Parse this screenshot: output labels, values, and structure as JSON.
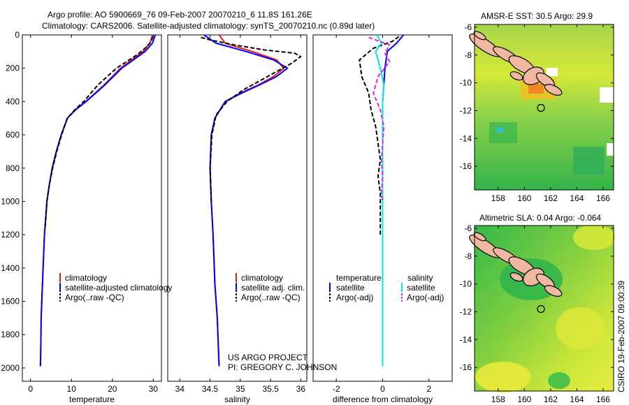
{
  "figure": {
    "title_line1": "Argo profile: AO 5900669_76 09-Feb-2007 20070210_6 11.8S 161.26E",
    "title_line2": "Climatology: CARS2006. Satellite-adjusted climatology: synTS_20070210.nc (0.89d later)",
    "project_line1": "US ARGO PROJECT",
    "project_line2": "PI: GREGORY C. JOHNSON",
    "stamp": "CSIRO 19-Feb-2007 09:00:39",
    "colors": {
      "climatology": "#e41a1c",
      "satellite": "#0000ff",
      "argo": "#000000",
      "salinity_satellite": "#00e5ee",
      "salinity_argo": "#e02ad0",
      "map_frame": "#000000"
    }
  },
  "chart_data": [
    {
      "type": "line",
      "id": "temperature",
      "xlabel": "temperature",
      "xlim": [
        -2,
        32
      ],
      "xticks": [
        0,
        10,
        20,
        30
      ],
      "ylim": [
        0,
        2080
      ],
      "yreversed": true,
      "yticks": [
        0,
        200,
        400,
        600,
        800,
        1000,
        1200,
        1400,
        1600,
        1800,
        2000
      ],
      "legend": [
        "climatology",
        "satellite-adjusted climatology",
        "Argo(..raw -QC)"
      ],
      "series": [
        {
          "name": "climatology",
          "color": "#e41a1c",
          "style": "solid",
          "x": [
            29.8,
            29.2,
            27.5,
            22.0,
            18.0,
            13.5,
            11.0,
            9.0,
            7.5,
            6.3,
            5.3,
            4.6,
            4.0,
            3.4,
            2.9,
            2.6,
            2.5,
            2.4
          ],
          "y": [
            0,
            50,
            100,
            200,
            300,
            400,
            450,
            500,
            600,
            700,
            800,
            900,
            1000,
            1200,
            1500,
            1700,
            1900,
            1990
          ]
        },
        {
          "name": "satellite-adjusted climatology",
          "color": "#0000ff",
          "style": "solid",
          "x": [
            30.5,
            29.8,
            28.0,
            22.3,
            18.2,
            13.6,
            11.0,
            9.0,
            7.5,
            6.3,
            5.3,
            4.6,
            4.0,
            3.4,
            2.9,
            2.6,
            2.5,
            2.4
          ],
          "y": [
            0,
            50,
            100,
            200,
            300,
            400,
            450,
            500,
            600,
            700,
            800,
            900,
            1000,
            1200,
            1500,
            1700,
            1900,
            1990
          ]
        },
        {
          "name": "Argo(..raw -QC)",
          "color": "#000000",
          "style": "dashed",
          "x": [
            29.9,
            29.5,
            28.0,
            26.0,
            21.0,
            16.5,
            13.0,
            10.8,
            9.0,
            7.6,
            6.4,
            5.4,
            4.6,
            4.0,
            3.6
          ],
          "y": [
            10,
            40,
            80,
            120,
            200,
            300,
            400,
            450,
            500,
            600,
            700,
            800,
            900,
            1000,
            1150
          ]
        }
      ]
    },
    {
      "type": "line",
      "id": "salinity",
      "xlabel": "salinity",
      "xlim": [
        33.8,
        36.1
      ],
      "xticks": [
        34,
        34.5,
        35,
        35.5,
        36
      ],
      "ylim": [
        0,
        2080
      ],
      "yreversed": true,
      "legend": [
        "climatology",
        "satellite adj. clim.",
        "Argo(..raw -QC)"
      ],
      "series": [
        {
          "name": "climatology",
          "color": "#e41a1c",
          "style": "solid",
          "x": [
            34.65,
            34.75,
            35.2,
            35.6,
            35.72,
            35.55,
            35.3,
            35.0,
            34.75,
            34.58,
            34.52,
            34.5,
            34.52,
            34.55,
            34.58,
            34.62,
            34.64,
            34.65
          ],
          "y": [
            0,
            50,
            100,
            150,
            200,
            250,
            300,
            350,
            400,
            500,
            600,
            800,
            1000,
            1200,
            1500,
            1700,
            1900,
            1990
          ]
        },
        {
          "name": "satellite adj. clim.",
          "color": "#0000ff",
          "style": "solid",
          "x": [
            34.4,
            34.6,
            35.1,
            35.55,
            35.78,
            35.6,
            35.32,
            35.02,
            34.75,
            34.58,
            34.52,
            34.5,
            34.52,
            34.55,
            34.58,
            34.62,
            34.64,
            34.65
          ],
          "y": [
            0,
            50,
            100,
            150,
            200,
            250,
            300,
            350,
            400,
            500,
            600,
            800,
            1000,
            1200,
            1500,
            1700,
            1900,
            1990
          ]
        },
        {
          "name": "Argo(..raw -QC)",
          "color": "#000000",
          "style": "dashed",
          "x": [
            34.35,
            34.5,
            34.9,
            35.4,
            35.9,
            36.0,
            35.85,
            35.45,
            35.05,
            34.78,
            34.6,
            34.53,
            34.5,
            34.52
          ],
          "y": [
            15,
            30,
            60,
            90,
            110,
            130,
            170,
            250,
            330,
            400,
            480,
            600,
            800,
            1000
          ]
        }
      ]
    },
    {
      "type": "line",
      "id": "difference",
      "xlabel": "difference from climatology",
      "xlim": [
        -3,
        3
      ],
      "xticks": [
        -2,
        0,
        2
      ],
      "ylim": [
        0,
        2080
      ],
      "yreversed": true,
      "legend": {
        "temperature": "temperature",
        "salinity": "salinity",
        "entries": [
          "satellite",
          "Argo(-adj)",
          "satellite",
          "Argo(-adj)"
        ]
      },
      "series": [
        {
          "name": "temperature satellite",
          "color": "#0000ff",
          "style": "solid",
          "x": [
            0.9,
            0.6,
            0.2,
            0.1,
            0.05,
            0,
            0,
            0,
            0,
            0
          ],
          "y": [
            0,
            50,
            100,
            200,
            300,
            400,
            600,
            1000,
            1500,
            1990
          ]
        },
        {
          "name": "temperature Argo(-adj)",
          "color": "#000000",
          "style": "dashed",
          "x": [
            0.7,
            0.4,
            -0.4,
            -1.0,
            -0.9,
            -0.6,
            -0.5,
            -0.3,
            -0.2,
            -0.1,
            -0.2,
            -0.1,
            -0.1,
            -0.1,
            -0.1
          ],
          "y": [
            10,
            40,
            80,
            150,
            250,
            350,
            450,
            550,
            650,
            750,
            850,
            950,
            1050,
            1100,
            1200
          ]
        },
        {
          "name": "salinity satellite",
          "color": "#00e5ee",
          "style": "solid",
          "x": [
            -0.25,
            -0.05,
            -0.3,
            -0.1,
            0.05,
            0,
            0,
            0,
            0,
            0
          ],
          "y": [
            0,
            50,
            100,
            200,
            300,
            400,
            600,
            1000,
            1500,
            1990
          ]
        },
        {
          "name": "salinity Argo(-adj)",
          "color": "#e02ad0",
          "style": "dashed",
          "x": [
            -0.6,
            0.3,
            0.1,
            0.3,
            -0.2,
            -0.4,
            -0.1,
            0.05,
            0,
            -0.05,
            0,
            -0.05,
            0
          ],
          "y": [
            15,
            60,
            110,
            160,
            250,
            350,
            450,
            550,
            650,
            750,
            850,
            950,
            1000
          ]
        }
      ]
    },
    {
      "type": "heatmap",
      "id": "sst-map",
      "title": "AMSR-E SST: 30.5 Argo: 29.9",
      "xlim": [
        156.2,
        166.8
      ],
      "ylim": [
        -17.7,
        -5.8
      ],
      "xticks": [
        158,
        160,
        162,
        164,
        166
      ],
      "yticks": [
        -6,
        -8,
        -10,
        -12,
        -14,
        -16
      ],
      "marker": {
        "lon": 161.26,
        "lat": -11.8
      }
    },
    {
      "type": "heatmap",
      "id": "sla-map",
      "title": "Altimetric SLA: 0.04 Argo: -0.064",
      "xlim": [
        156.2,
        166.8
      ],
      "ylim": [
        -17.7,
        -5.8
      ],
      "xticks": [
        158,
        160,
        162,
        164,
        166
      ],
      "yticks": [
        -6,
        -8,
        -10,
        -12,
        -14,
        -16
      ],
      "marker": {
        "lon": 161.26,
        "lat": -11.8
      }
    }
  ]
}
